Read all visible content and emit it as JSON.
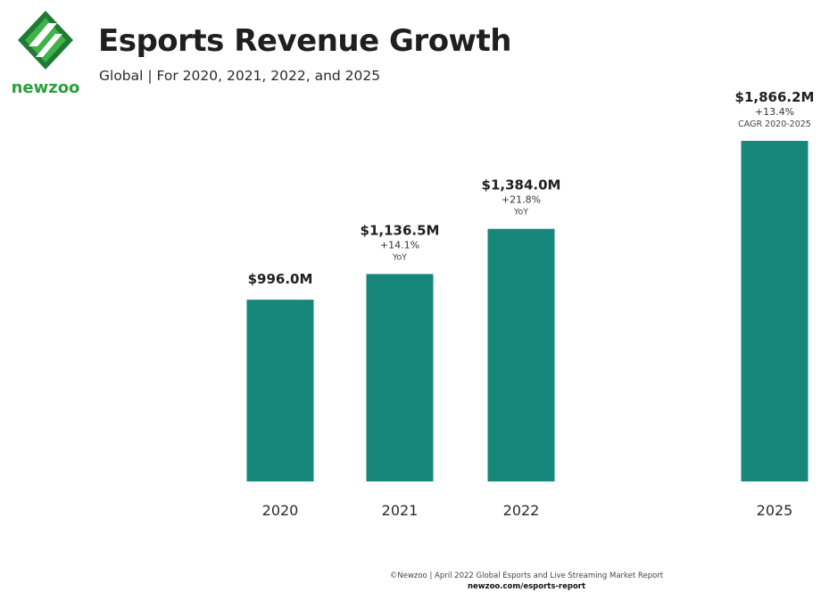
{
  "brand": {
    "name": "newzoo",
    "colors": {
      "dark": "#1f7a33",
      "light": "#3fb24a"
    }
  },
  "header": {
    "title": "Esports Revenue Growth",
    "subtitle": "Global | For 2020, 2021, 2022, and 2025"
  },
  "chart_data": {
    "type": "bar",
    "categories": [
      "2020",
      "2021",
      "2022",
      "2025"
    ],
    "values": [
      996.0,
      1136.5,
      1384.0,
      1866.2
    ],
    "value_labels": [
      "$996.0M",
      "$1,136.5M",
      "$1,384.0M",
      "$1,866.2M"
    ],
    "growth_labels": [
      "",
      "+14.1%",
      "+21.8%",
      "+13.4%"
    ],
    "growth_notes": [
      "",
      "YoY",
      "YoY",
      "CAGR 2020-2025"
    ],
    "ylim": [
      0,
      1866.2
    ],
    "grid": false,
    "bar_color": "#16877a"
  },
  "footer": {
    "source": "©Newzoo | April 2022 Global Esports and Live Streaming Market Report",
    "url": "newzoo.com/esports-report"
  }
}
